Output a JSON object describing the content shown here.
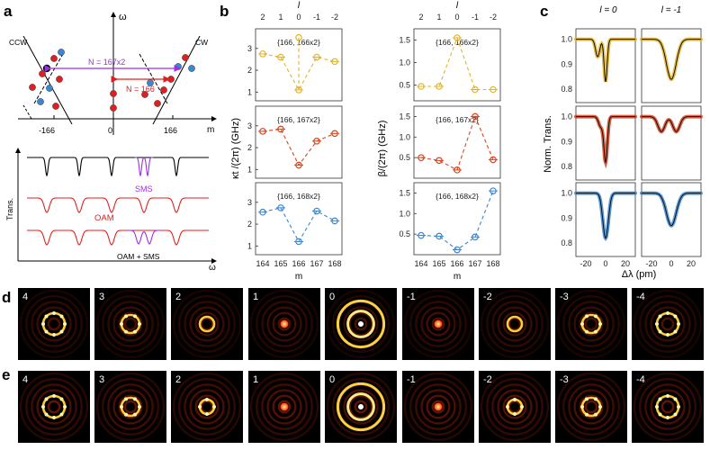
{
  "panel_labels": {
    "a": "a",
    "b": "b",
    "c": "c",
    "d": "d",
    "e": "e"
  },
  "panel_a": {
    "ccw": "CCW",
    "cw": "CW",
    "omega": "ω",
    "m": "m",
    "ticks": [
      "-166",
      "0",
      "166"
    ],
    "n1": "N = 167x2",
    "n2": "N = 166",
    "trans": "Trans.",
    "omega2": "ω",
    "sms": "SMS",
    "oam": "OAM",
    "oam_sms": "OAM + SMS"
  },
  "panel_b": {
    "top_axis_label": "l",
    "left_ylabel": "κt /(2π) (GHz)",
    "right_ylabel": "β/(2π) (GHz)",
    "xlabel": "m",
    "m_ticks": [
      "164",
      "165",
      "166",
      "167",
      "168"
    ],
    "l_ticks": [
      "2",
      "1",
      "0",
      "-1",
      "-2"
    ]
  },
  "panel_c": {
    "l0": "l = 0",
    "l1": "l = -1",
    "ylabel": "Norm. Trans.",
    "xlabel": "Δλ (pm)",
    "yticks": [
      "1.0",
      "0.9",
      "0.8"
    ],
    "xticks": [
      "-20",
      "0",
      "20"
    ]
  },
  "panel_d_labels": [
    "4",
    "3",
    "2",
    "1",
    "0",
    "-1",
    "-2",
    "-3",
    "-4"
  ],
  "panel_e_labels": [
    "4",
    "3",
    "2",
    "1",
    "0",
    "-1",
    "-2",
    "-3",
    "-4"
  ],
  "colors": {
    "yellow": "#e3b428",
    "red": "#d7451f",
    "blue": "#3b87d2",
    "purple": "#9b30e8"
  },
  "chart_data": [
    {
      "type": "line",
      "title": "{166, 166x2}",
      "series_color": "yellow",
      "x": [
        164,
        165,
        166,
        167,
        168
      ],
      "values": [
        2.75,
        2.6,
        1.1,
        2.6,
        2.4
      ],
      "ylim": [
        0.6,
        3.9
      ],
      "yticks": [
        "1",
        "2",
        "3"
      ],
      "ytick_values": [
        1,
        2,
        3
      ],
      "xlabel": "m",
      "ylabel": "κt /(2π) (GHz)",
      "peak_index": 2,
      "peak_value": 3.5
    },
    {
      "type": "line",
      "title": "{166, 167x2}",
      "series_color": "red",
      "x": [
        164,
        165,
        166,
        167,
        168
      ],
      "values": [
        2.75,
        2.85,
        1.2,
        2.3,
        2.65
      ],
      "ylim": [
        0.6,
        3.9
      ],
      "yticks": [
        "1",
        "2",
        "3"
      ],
      "ytick_values": [
        1,
        2,
        3
      ],
      "xlabel": "m",
      "ylabel": "κt /(2π) (GHz)"
    },
    {
      "type": "line",
      "title": "{166, 168x2}",
      "series_color": "blue",
      "x": [
        164,
        165,
        166,
        167,
        168
      ],
      "values": [
        2.55,
        2.75,
        1.2,
        2.6,
        2.15
      ],
      "ylim": [
        0.6,
        3.9
      ],
      "yticks": [
        "1",
        "2",
        "3"
      ],
      "ytick_values": [
        1,
        2,
        3
      ],
      "xlabel": "m",
      "ylabel": "κt /(2π) (GHz)"
    },
    {
      "type": "line",
      "title": "{166, 166x2}",
      "series_color": "yellow",
      "x": [
        164,
        165,
        166,
        167,
        168
      ],
      "values": [
        0.47,
        0.47,
        1.55,
        0.4,
        0.4
      ],
      "ylim": [
        0.15,
        1.75
      ],
      "yticks": [
        "0.5",
        "1.0",
        "1.5"
      ],
      "ytick_values": [
        0.5,
        1.0,
        1.5
      ],
      "xlabel": "m",
      "ylabel": "β/(2π) (GHz)"
    },
    {
      "type": "line",
      "title": "{166, 167x2}",
      "series_color": "red",
      "x": [
        164,
        165,
        166,
        167,
        168
      ],
      "values": [
        0.5,
        0.43,
        0.2,
        1.5,
        0.45
      ],
      "ylim": [
        0.0,
        1.75
      ],
      "yticks": [
        "0.5",
        "1.0",
        "1.5"
      ],
      "ytick_values": [
        0.5,
        1.0,
        1.5
      ],
      "xlabel": "m",
      "ylabel": "β/(2π) (GHz)"
    },
    {
      "type": "line",
      "title": "{166, 168x2}",
      "series_color": "blue",
      "x": [
        164,
        165,
        166,
        167,
        168
      ],
      "values": [
        0.47,
        0.45,
        0.12,
        0.43,
        1.55
      ],
      "ylim": [
        0.0,
        1.75
      ],
      "yticks": [
        "0.5",
        "1.0",
        "1.5"
      ],
      "ytick_values": [
        0.5,
        1.0,
        1.5
      ],
      "xlabel": "m",
      "ylabel": "β/(2π) (GHz)"
    }
  ],
  "spectra_data": [
    {
      "type": "line",
      "col": "l = 0",
      "color": "yellow",
      "dips": [
        {
          "c": -8,
          "w": 3,
          "d": 0.07
        },
        {
          "c": 0,
          "w": 2.2,
          "d": 0.17
        }
      ]
    },
    {
      "type": "line",
      "col": "l = -1",
      "color": "yellow",
      "dips": [
        {
          "c": 0,
          "w": 7,
          "d": 0.16
        }
      ]
    },
    {
      "type": "line",
      "col": "l = 0",
      "color": "red",
      "dips": [
        {
          "c": 0,
          "w": 2.5,
          "d": 0.18
        },
        {
          "c": -5,
          "w": 3,
          "d": 0.04
        }
      ]
    },
    {
      "type": "line",
      "col": "l = -1",
      "color": "red",
      "dips": [
        {
          "c": -10,
          "w": 5,
          "d": 0.06
        },
        {
          "c": 5,
          "w": 5,
          "d": 0.06
        }
      ]
    },
    {
      "type": "line",
      "col": "l = 0",
      "color": "blue",
      "dips": [
        {
          "c": 0,
          "w": 4,
          "d": 0.18
        }
      ]
    },
    {
      "type": "line",
      "col": "l = -1",
      "color": "blue",
      "dips": [
        {
          "c": 0,
          "w": 7,
          "d": 0.13
        }
      ]
    }
  ]
}
